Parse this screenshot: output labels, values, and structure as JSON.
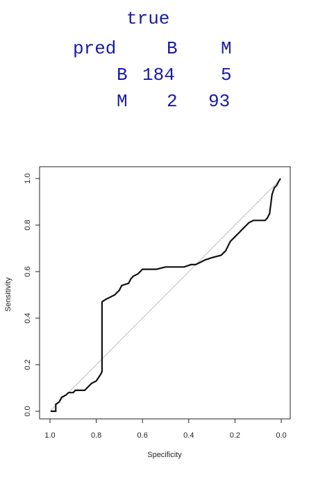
{
  "confusion_table": {
    "col_var": "true",
    "row_var": "pred",
    "col_headers": [
      "B",
      "M"
    ],
    "rows": [
      {
        "label": "B",
        "values": [
          "184",
          "5"
        ]
      },
      {
        "label": "M",
        "values": [
          "2",
          "93"
        ]
      }
    ],
    "color": "#1a1aa6"
  },
  "chart_data": {
    "type": "line",
    "title": "",
    "xlabel": "Specificity",
    "ylabel": "Sensitivity",
    "xlim": [
      1.0,
      0.0
    ],
    "ylim": [
      0.0,
      1.0
    ],
    "x_reversed": true,
    "grid": false,
    "legend": "none",
    "x_ticks": [
      "1.0",
      "0.8",
      "0.6",
      "0.4",
      "0.2",
      "0.0"
    ],
    "y_ticks": [
      "0.0",
      "0.2",
      "0.4",
      "0.6",
      "0.8",
      "1.0"
    ],
    "reference_line": {
      "from": [
        1.0,
        0.0
      ],
      "to": [
        0.0,
        1.0
      ],
      "color": "#bbbbbb"
    },
    "series": [
      {
        "color": "#111111",
        "points": [
          [
            0.997,
            0.0
          ],
          [
            0.975,
            0.0
          ],
          [
            0.975,
            0.03
          ],
          [
            0.96,
            0.04
          ],
          [
            0.95,
            0.06
          ],
          [
            0.93,
            0.07
          ],
          [
            0.92,
            0.08
          ],
          [
            0.9,
            0.08
          ],
          [
            0.89,
            0.09
          ],
          [
            0.85,
            0.09
          ],
          [
            0.83,
            0.11
          ],
          [
            0.82,
            0.12
          ],
          [
            0.8,
            0.13
          ],
          [
            0.78,
            0.16
          ],
          [
            0.775,
            0.17
          ],
          [
            0.775,
            0.47
          ],
          [
            0.76,
            0.48
          ],
          [
            0.74,
            0.49
          ],
          [
            0.72,
            0.5
          ],
          [
            0.71,
            0.51
          ],
          [
            0.7,
            0.52
          ],
          [
            0.69,
            0.54
          ],
          [
            0.66,
            0.55
          ],
          [
            0.65,
            0.57
          ],
          [
            0.64,
            0.58
          ],
          [
            0.62,
            0.59
          ],
          [
            0.6,
            0.61
          ],
          [
            0.54,
            0.61
          ],
          [
            0.5,
            0.62
          ],
          [
            0.42,
            0.62
          ],
          [
            0.39,
            0.63
          ],
          [
            0.37,
            0.63
          ],
          [
            0.35,
            0.64
          ],
          [
            0.33,
            0.65
          ],
          [
            0.3,
            0.66
          ],
          [
            0.26,
            0.67
          ],
          [
            0.25,
            0.68
          ],
          [
            0.24,
            0.69
          ],
          [
            0.23,
            0.71
          ],
          [
            0.22,
            0.73
          ],
          [
            0.2,
            0.75
          ],
          [
            0.18,
            0.77
          ],
          [
            0.17,
            0.78
          ],
          [
            0.16,
            0.79
          ],
          [
            0.15,
            0.8
          ],
          [
            0.14,
            0.81
          ],
          [
            0.12,
            0.82
          ],
          [
            0.07,
            0.82
          ],
          [
            0.06,
            0.83
          ],
          [
            0.05,
            0.85
          ],
          [
            0.045,
            0.89
          ],
          [
            0.04,
            0.93
          ],
          [
            0.03,
            0.96
          ],
          [
            0.02,
            0.97
          ],
          [
            0.01,
            0.99
          ],
          [
            0.003,
            1.0
          ]
        ]
      }
    ]
  }
}
